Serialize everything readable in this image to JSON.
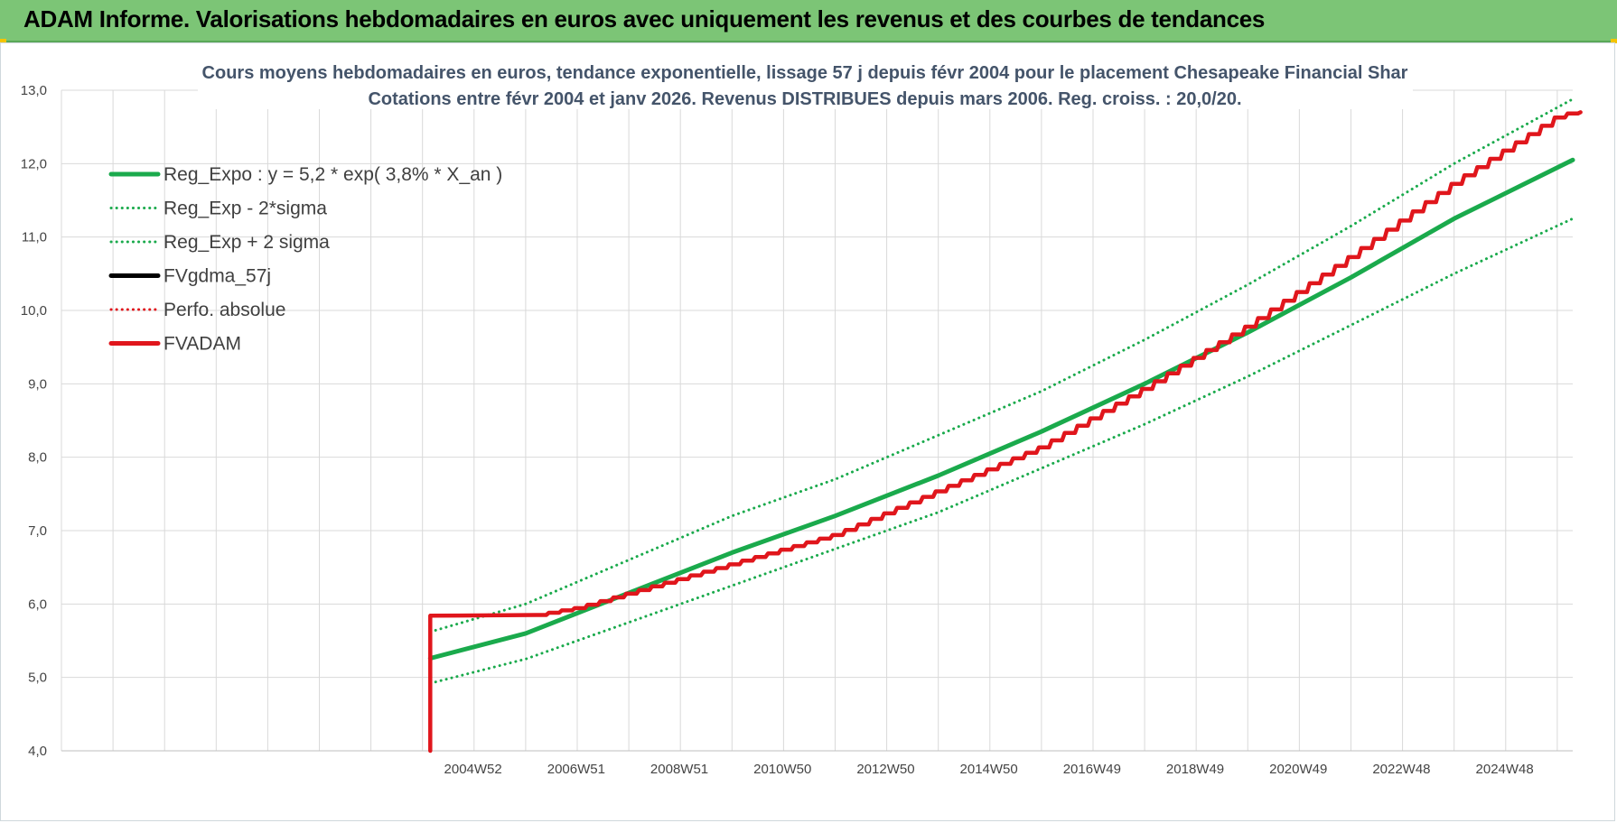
{
  "header": {
    "title": "ADAM Informe. Valorisations hebdomadaires en euros avec uniquement les revenus et des courbes de tendances"
  },
  "chart_data": {
    "type": "line",
    "title": "Cours moyens hebdomadaires en euros, tendance exponentielle, lissage 57 j depuis févr 2004 pour le placement Chesapeake Financial Shar",
    "subtitle": "Cotations entre févr 2004 et janv 2026. Revenus DISTRIBUES depuis mars 2006. Reg. croiss. : 20,0/20.",
    "xlabel": "",
    "ylabel": "",
    "ylim": [
      4.0,
      13.0
    ],
    "yticks": [
      "4,0",
      "5,0",
      "6,0",
      "7,0",
      "8,0",
      "9,0",
      "10,0",
      "11,0",
      "12,0",
      "13,0"
    ],
    "xlim": [
      1997.0,
      2026.3
    ],
    "x_tick_labels": [
      {
        "label": "2004W52",
        "x": 2004.98
      },
      {
        "label": "2006W51",
        "x": 2006.98
      },
      {
        "label": "2008W51",
        "x": 2008.98
      },
      {
        "label": "2010W50",
        "x": 2010.98
      },
      {
        "label": "2012W50",
        "x": 2012.98
      },
      {
        "label": "2014W50",
        "x": 2014.98
      },
      {
        "label": "2016W49",
        "x": 2016.98
      },
      {
        "label": "2018W49",
        "x": 2018.98
      },
      {
        "label": "2020W49",
        "x": 2020.98
      },
      {
        "label": "2022W48",
        "x": 2022.98
      },
      {
        "label": "2024W48",
        "x": 2024.98
      }
    ],
    "grid": true,
    "legend_position": "top-left",
    "series": [
      {
        "name": "Reg_Expo : y = 5,2 * exp( 3,8% *  X_an )",
        "color": "#1aaa4c",
        "style": "solid",
        "x": [
          2004.15,
          2006,
          2008,
          2010,
          2012,
          2014,
          2016,
          2018,
          2020,
          2022,
          2024,
          2026.3
        ],
        "y": [
          5.26,
          5.6,
          6.15,
          6.7,
          7.2,
          7.75,
          8.35,
          9.0,
          9.7,
          10.45,
          11.25,
          12.05
        ]
      },
      {
        "name": "Reg_Exp - 2*sigma",
        "color": "#1aaa4c",
        "style": "dotted",
        "x": [
          2004.15,
          2006,
          2008,
          2010,
          2012,
          2014,
          2016,
          2018,
          2020,
          2022,
          2024,
          2026.3
        ],
        "y": [
          4.92,
          5.25,
          5.75,
          6.25,
          6.75,
          7.25,
          7.85,
          8.45,
          9.1,
          9.8,
          10.5,
          11.25
        ]
      },
      {
        "name": "Reg_Exp + 2 sigma",
        "color": "#1aaa4c",
        "style": "dotted",
        "x": [
          2004.15,
          2006,
          2008,
          2010,
          2012,
          2014,
          2016,
          2018,
          2020,
          2022,
          2024,
          2026.3
        ],
        "y": [
          5.62,
          6.0,
          6.6,
          7.2,
          7.7,
          8.3,
          8.9,
          9.6,
          10.35,
          11.15,
          12.0,
          12.88
        ]
      },
      {
        "name": "FVgdma_57j",
        "color": "#000000",
        "style": "solid",
        "x": [],
        "y": []
      },
      {
        "name": "Perfo. absolue",
        "color": "#e0161c",
        "style": "dotted",
        "x": [],
        "y": []
      },
      {
        "name": "FVADAM",
        "color": "#e0161c",
        "style": "solid",
        "x": [
          2004.15,
          2004.15,
          2006.2,
          2007,
          2008,
          2010,
          2012,
          2014,
          2016,
          2018,
          2020,
          2022,
          2024,
          2026.0,
          2026.3
        ],
        "y": [
          4.0,
          5.84,
          5.85,
          5.95,
          6.15,
          6.55,
          6.95,
          7.55,
          8.15,
          8.95,
          9.8,
          10.75,
          11.75,
          12.65,
          12.7
        ]
      }
    ]
  }
}
